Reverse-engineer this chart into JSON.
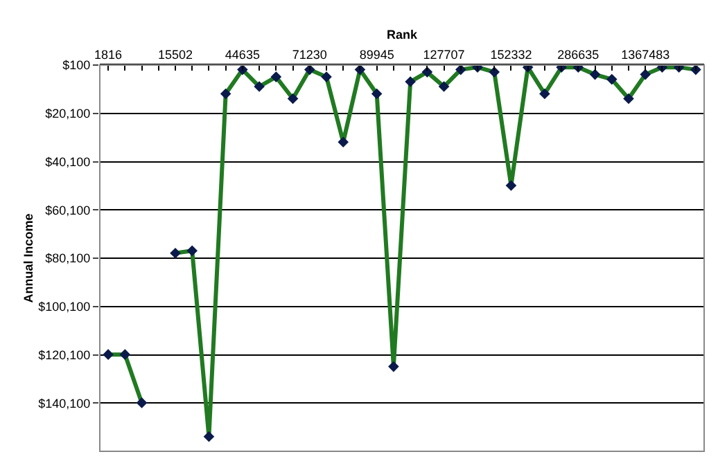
{
  "chart_data": {
    "type": "line",
    "xlabel": "Rank",
    "ylabel": "Annual Income",
    "categories": [
      "1816",
      null,
      null,
      null,
      "15502",
      null,
      null,
      null,
      "44635",
      null,
      null,
      null,
      "71230",
      null,
      null,
      null,
      "89945",
      null,
      null,
      null,
      "127707",
      null,
      null,
      null,
      "152332",
      null,
      null,
      null,
      "286635",
      null,
      null,
      null,
      "1367483",
      null,
      null,
      null
    ],
    "series": [
      {
        "color": "#217a21",
        "values": [
          120000,
          120000,
          140000,
          null,
          78000,
          77000,
          154000,
          12000,
          2000,
          9000,
          5000,
          14000,
          2000,
          5000,
          32000,
          2000,
          12000,
          125000,
          7000,
          3000,
          9000,
          2000,
          1000,
          3000,
          50000,
          1000,
          12000,
          1000,
          1000,
          4000,
          6000,
          14000,
          4000,
          1000,
          1000,
          2000
        ]
      }
    ],
    "ylim": [
      160100,
      100
    ],
    "yticks": [
      {
        "value": 100,
        "label": "$100"
      },
      {
        "value": 20100,
        "label": "$20,100"
      },
      {
        "value": 40100,
        "label": "$40,100"
      },
      {
        "value": 60100,
        "label": "$60,100"
      },
      {
        "value": 80100,
        "label": "$80,100"
      },
      {
        "value": 100100,
        "label": "$100,100"
      },
      {
        "value": 120100,
        "label": "$120,100"
      },
      {
        "value": 140100,
        "label": "$140,100"
      }
    ],
    "grid": "y",
    "marker": "diamond",
    "line_style": "solid"
  }
}
